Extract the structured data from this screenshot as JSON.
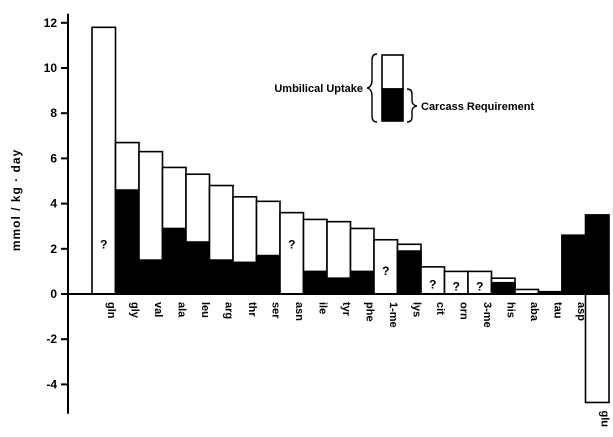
{
  "chart_data": {
    "type": "bar",
    "ylabel": "mmol / kg · day",
    "ylim": [
      -5,
      12
    ],
    "yticks": [
      12,
      10,
      8,
      6,
      4,
      2,
      0,
      -2,
      -4
    ],
    "categories": [
      "gln",
      "gly",
      "val",
      "ala",
      "leu",
      "arg",
      "thr",
      "ser",
      "asn",
      "ile",
      "tyr",
      "phe",
      "1-me",
      "lys",
      "cit",
      "orn",
      "3-me",
      "his",
      "aba",
      "tau",
      "asp",
      "glu"
    ],
    "series": [
      {
        "name": "Umbilical Uptake",
        "values": [
          11.8,
          6.7,
          6.3,
          5.6,
          5.3,
          4.8,
          4.3,
          4.1,
          3.6,
          3.3,
          3.2,
          2.9,
          2.4,
          2.2,
          1.2,
          1.0,
          1.0,
          0.7,
          0.2,
          0.1,
          2.6,
          -4.8
        ]
      },
      {
        "name": "Carcass Requirement",
        "values": [
          null,
          4.6,
          1.5,
          2.9,
          2.3,
          1.5,
          1.4,
          1.7,
          null,
          1.0,
          0.7,
          1.0,
          null,
          1.9,
          null,
          null,
          null,
          0.5,
          0,
          0.1,
          2.6,
          3.5
        ]
      }
    ],
    "unknown_label": "?",
    "legend": {
      "uptake_label": "Umbilical Uptake",
      "carcass_label": "Carcass Requirement",
      "placement": "top-center"
    }
  }
}
